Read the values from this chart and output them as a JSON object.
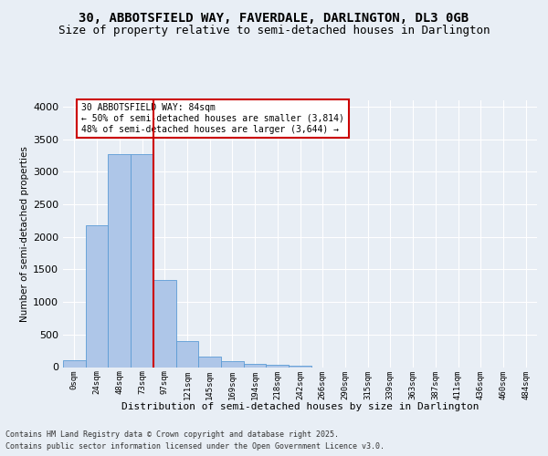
{
  "title_line1": "30, ABBOTSFIELD WAY, FAVERDALE, DARLINGTON, DL3 0GB",
  "title_line2": "Size of property relative to semi-detached houses in Darlington",
  "xlabel": "Distribution of semi-detached houses by size in Darlington",
  "ylabel": "Number of semi-detached properties",
  "footer_line1": "Contains HM Land Registry data © Crown copyright and database right 2025.",
  "footer_line2": "Contains public sector information licensed under the Open Government Licence v3.0.",
  "bin_labels": [
    "0sqm",
    "24sqm",
    "48sqm",
    "73sqm",
    "97sqm",
    "121sqm",
    "145sqm",
    "169sqm",
    "194sqm",
    "218sqm",
    "242sqm",
    "266sqm",
    "290sqm",
    "315sqm",
    "339sqm",
    "363sqm",
    "387sqm",
    "411sqm",
    "436sqm",
    "460sqm",
    "484sqm"
  ],
  "bar_values": [
    110,
    2175,
    3270,
    3270,
    1340,
    405,
    165,
    90,
    50,
    30,
    15,
    0,
    0,
    0,
    0,
    0,
    0,
    0,
    0,
    0,
    0
  ],
  "bar_color": "#aec6e8",
  "bar_edge_color": "#5b9bd5",
  "property_bin_index": 3,
  "vline_color": "#cc0000",
  "annotation_text": "30 ABBOTSFIELD WAY: 84sqm\n← 50% of semi-detached houses are smaller (3,814)\n48% of semi-detached houses are larger (3,644) →",
  "annotation_box_color": "#ffffff",
  "annotation_box_edge_color": "#cc0000",
  "ylim": [
    0,
    4100
  ],
  "yticks": [
    0,
    500,
    1000,
    1500,
    2000,
    2500,
    3000,
    3500,
    4000
  ],
  "background_color": "#e8eef5",
  "plot_background": "#e8eef5",
  "grid_color": "#ffffff",
  "title_fontsize": 10,
  "subtitle_fontsize": 9
}
